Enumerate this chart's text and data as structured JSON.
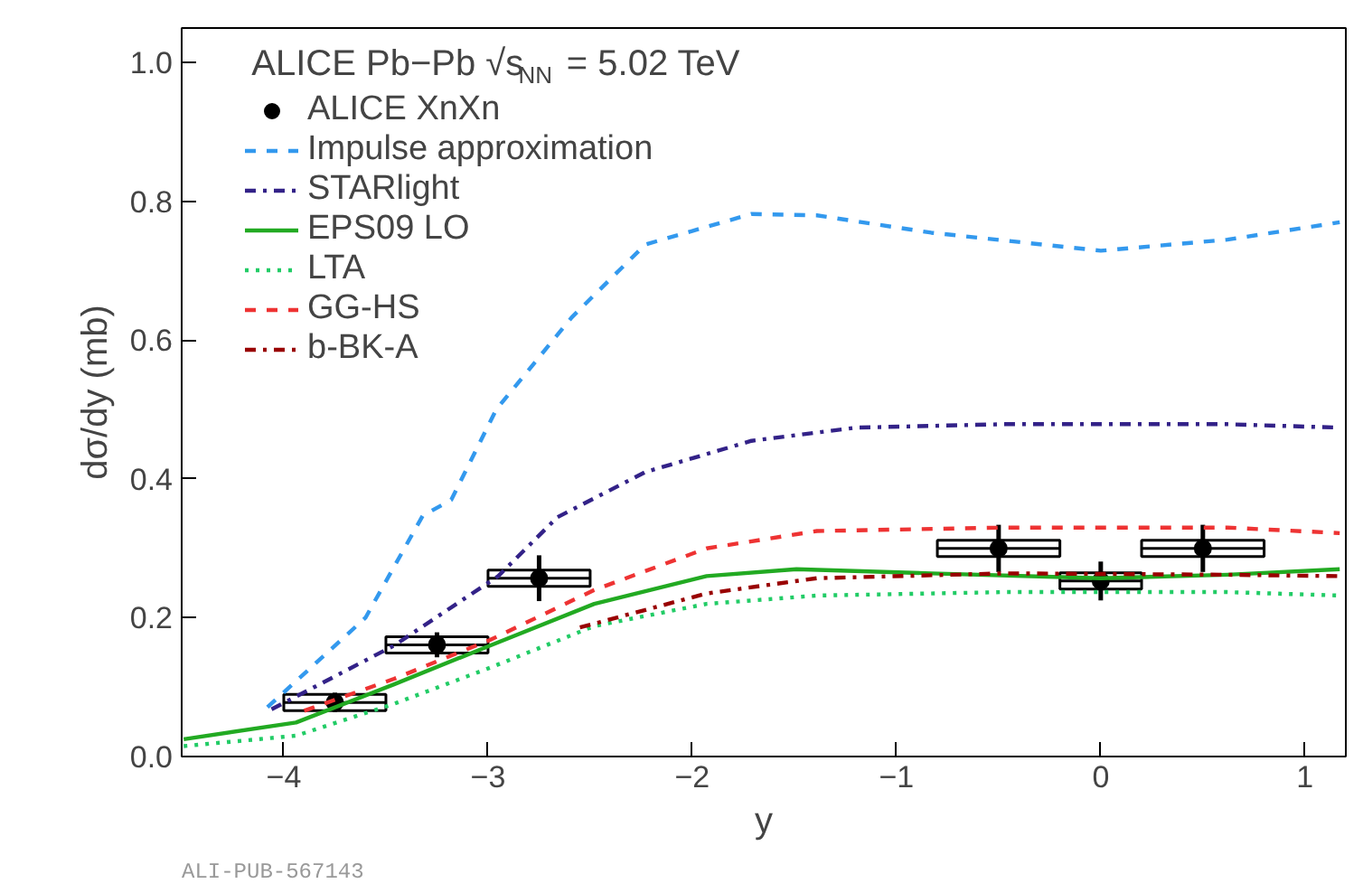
{
  "chart_data": {
    "type": "line",
    "xlabel": "y",
    "ylabel": "dσ/dy (mb)",
    "xlim": [
      -4.5,
      1.2
    ],
    "ylim": [
      0,
      1.05
    ],
    "xticks": [
      {
        "value": -4,
        "label": "−4"
      },
      {
        "value": -3,
        "label": "−3"
      },
      {
        "value": -2,
        "label": "−2"
      },
      {
        "value": -1,
        "label": "−1"
      },
      0,
      1
    ],
    "yticks": [
      {
        "value": 0,
        "label": "0.0"
      },
      {
        "value": 0.2,
        "label": "0.2"
      },
      {
        "value": 0.4,
        "label": "0.4"
      },
      {
        "value": 0.6,
        "label": "0.6"
      },
      {
        "value": 0.8,
        "label": "0.8"
      },
      {
        "value": 1,
        "label": "1.0"
      }
    ],
    "grid": false,
    "legend": "top left",
    "annotations": [
      "ALICE Pb−Pb √s$_{NN}$ = 5.02 TeV",
      "ALI-PUB-567143"
    ],
    "series": [
      {
        "name": "ALICE XnXn",
        "type": "scatter",
        "marker": "circle",
        "color": "#000000",
        "x": [
          -3.75,
          -3.25,
          -2.75,
          -0.5,
          0,
          0.5
        ],
        "values": [
          0.078,
          0.161,
          0.257,
          0.3,
          0.253,
          0.3
        ],
        "errors": [
          0.014,
          0.018,
          0.033,
          0.034,
          0.028,
          0.034
        ],
        "xerrors": [
          0.25,
          0.25,
          0.25,
          0.3,
          0.2,
          0.3
        ]
      },
      {
        "name": "Impulse approximation",
        "line_style": "dashed",
        "color": "#3399ee",
        "x": [
          -4.08,
          -3.6,
          -3.32,
          -3.18,
          -2.96,
          -2.59,
          -2.23,
          -1.71,
          -1.39,
          -0.83,
          0,
          0.62,
          1.17
        ],
        "values": [
          0.071,
          0.2,
          0.347,
          0.37,
          0.5,
          0.633,
          0.738,
          0.782,
          0.78,
          0.755,
          0.729,
          0.745,
          0.77
        ]
      },
      {
        "name": "STARlight",
        "line_style": "dashdot",
        "color": "#332288",
        "x": [
          -4.06,
          -3.46,
          -2.95,
          -2.66,
          -2.23,
          -1.71,
          -1.2,
          -0.47,
          0.62,
          1.17
        ],
        "values": [
          0.068,
          0.16,
          0.26,
          0.345,
          0.41,
          0.455,
          0.474,
          0.479,
          0.479,
          0.474
        ]
      },
      {
        "name": "EPS09 LO",
        "line_style": "solid",
        "color": "#22aa22",
        "x": [
          -4.49,
          -3.94,
          -3.46,
          -2.99,
          -2.48,
          -1.93,
          -1.49,
          -0.83,
          0,
          0.62,
          1.17
        ],
        "values": [
          0.025,
          0.049,
          0.104,
          0.16,
          0.22,
          0.26,
          0.27,
          0.264,
          0.257,
          0.262,
          0.27
        ]
      },
      {
        "name": "LTA",
        "line_style": "dotted",
        "color": "#22cc66",
        "x": [
          -4.49,
          -3.94,
          -3.46,
          -2.99,
          -2.48,
          -1.93,
          -1.39,
          -0.47,
          0.62,
          1.17
        ],
        "values": [
          0.015,
          0.03,
          0.076,
          0.128,
          0.188,
          0.22,
          0.232,
          0.237,
          0.237,
          0.232
        ]
      },
      {
        "name": "GG-HS",
        "line_style": "dashed",
        "color": "#ee3333",
        "x": [
          -3.9,
          -3.46,
          -2.99,
          -2.48,
          -1.93,
          -1.39,
          -0.47,
          0.62,
          1.17
        ],
        "values": [
          0.066,
          0.112,
          0.168,
          0.24,
          0.3,
          0.325,
          0.33,
          0.33,
          0.322
        ]
      },
      {
        "name": "b-BK-A",
        "line_style": "dashdot",
        "color": "#990000",
        "x": [
          -2.55,
          -1.93,
          -1.39,
          -0.47,
          0.62,
          1.17
        ],
        "values": [
          0.186,
          0.235,
          0.257,
          0.264,
          0.262,
          0.26
        ]
      }
    ]
  }
}
